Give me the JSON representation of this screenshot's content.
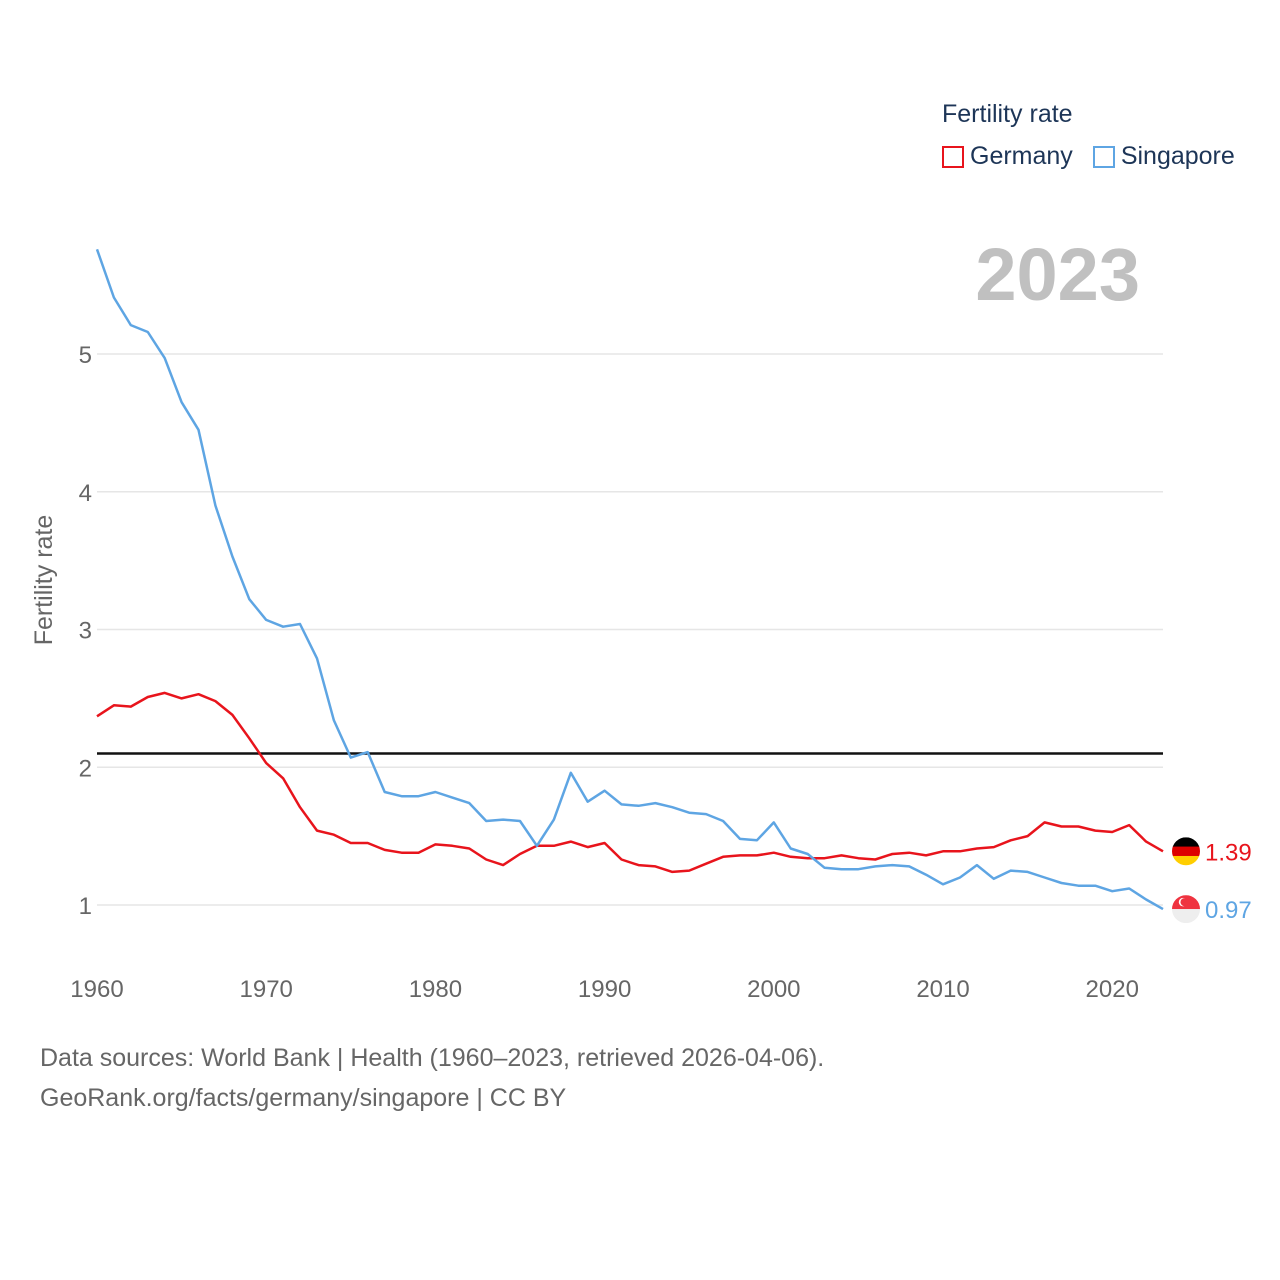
{
  "legend": {
    "title": "Fertility rate",
    "items": [
      {
        "label": "Germany",
        "color": "#e8141c"
      },
      {
        "label": "Singapore",
        "color": "#5ea5e3"
      }
    ]
  },
  "footer": {
    "line1": "Data sources: World Bank | Health (1960–2023, retrieved 2026-04-06).",
    "line2": "GeoRank.org/facts/germany/singapore | CC BY"
  },
  "chart_data": {
    "type": "line",
    "title": "Fertility rate",
    "year_label": "2023",
    "xlabel": "",
    "ylabel": "Fertility rate",
    "xlim": [
      1960,
      2023
    ],
    "ylim": [
      0.6,
      5.8
    ],
    "x_ticks": [
      1960,
      1970,
      1980,
      1990,
      2000,
      2010,
      2020
    ],
    "y_ticks": [
      1,
      2,
      3,
      4,
      5
    ],
    "grid": true,
    "reference_line": {
      "y": 2.1,
      "color": "#111111"
    },
    "x": [
      1960,
      1961,
      1962,
      1963,
      1964,
      1965,
      1966,
      1967,
      1968,
      1969,
      1970,
      1971,
      1972,
      1973,
      1974,
      1975,
      1976,
      1977,
      1978,
      1979,
      1980,
      1981,
      1982,
      1983,
      1984,
      1985,
      1986,
      1987,
      1988,
      1989,
      1990,
      1991,
      1992,
      1993,
      1994,
      1995,
      1996,
      1997,
      1998,
      1999,
      2000,
      2001,
      2002,
      2003,
      2004,
      2005,
      2006,
      2007,
      2008,
      2009,
      2010,
      2011,
      2012,
      2013,
      2014,
      2015,
      2016,
      2017,
      2018,
      2019,
      2020,
      2021,
      2022,
      2023
    ],
    "series": [
      {
        "name": "Germany",
        "color": "#e8141c",
        "end_label": "1.39",
        "values": [
          2.37,
          2.45,
          2.44,
          2.51,
          2.54,
          2.5,
          2.53,
          2.48,
          2.38,
          2.21,
          2.03,
          1.92,
          1.71,
          1.54,
          1.51,
          1.45,
          1.45,
          1.4,
          1.38,
          1.38,
          1.44,
          1.43,
          1.41,
          1.33,
          1.29,
          1.37,
          1.43,
          1.43,
          1.46,
          1.42,
          1.45,
          1.33,
          1.29,
          1.28,
          1.24,
          1.25,
          1.3,
          1.35,
          1.36,
          1.36,
          1.38,
          1.35,
          1.34,
          1.34,
          1.36,
          1.34,
          1.33,
          1.37,
          1.38,
          1.36,
          1.39,
          1.39,
          1.41,
          1.42,
          1.47,
          1.5,
          1.6,
          1.57,
          1.57,
          1.54,
          1.53,
          1.58,
          1.46,
          1.39
        ]
      },
      {
        "name": "Singapore",
        "color": "#5ea5e3",
        "end_label": "0.97",
        "values": [
          5.76,
          5.41,
          5.21,
          5.16,
          4.97,
          4.65,
          4.45,
          3.9,
          3.53,
          3.22,
          3.07,
          3.02,
          3.04,
          2.79,
          2.34,
          2.07,
          2.11,
          1.82,
          1.79,
          1.79,
          1.82,
          1.78,
          1.74,
          1.61,
          1.62,
          1.61,
          1.43,
          1.62,
          1.96,
          1.75,
          1.83,
          1.73,
          1.72,
          1.74,
          1.71,
          1.67,
          1.66,
          1.61,
          1.48,
          1.47,
          1.6,
          1.41,
          1.37,
          1.27,
          1.26,
          1.26,
          1.28,
          1.29,
          1.28,
          1.22,
          1.15,
          1.2,
          1.29,
          1.19,
          1.25,
          1.24,
          1.2,
          1.16,
          1.14,
          1.14,
          1.1,
          1.12,
          1.04,
          0.97
        ]
      }
    ]
  }
}
